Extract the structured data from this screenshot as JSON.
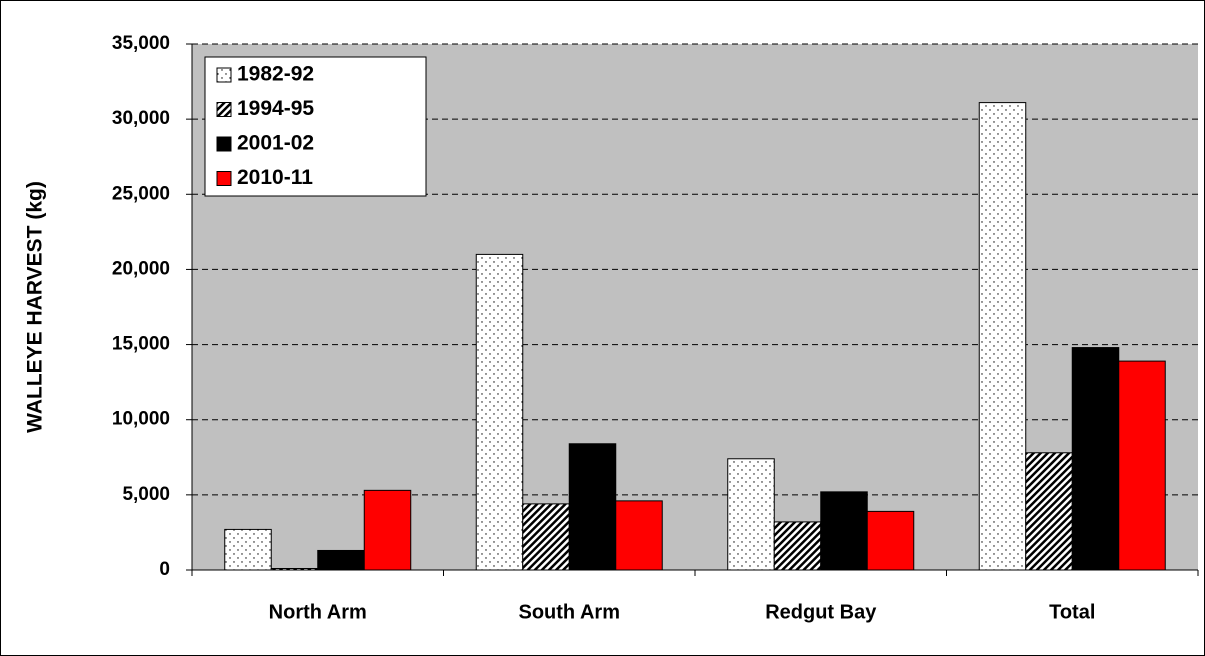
{
  "chart_data": {
    "type": "bar",
    "y_label": "WALLEYE HARVEST (kg)",
    "categories": [
      "North Arm",
      "South Arm",
      "Redgut Bay",
      "Total"
    ],
    "series": [
      {
        "name": "1982-92",
        "color": "#ffffff",
        "pattern": "dots",
        "values": [
          2700,
          21000,
          7400,
          31100
        ]
      },
      {
        "name": "1994-95",
        "color": "#ffffff",
        "pattern": "hatch",
        "values": [
          100,
          4400,
          3200,
          7800
        ]
      },
      {
        "name": "2001-02",
        "color": "#000000",
        "pattern": "solid",
        "values": [
          1300,
          8400,
          5200,
          14800
        ]
      },
      {
        "name": "2010-11",
        "color": "#ff0000",
        "pattern": "solid",
        "values": [
          5300,
          4600,
          3900,
          13900
        ]
      }
    ],
    "ylim": [
      0,
      35000
    ],
    "yticks": [
      0,
      {
        "value": 5000,
        "label": "5,000"
      },
      {
        "value": 10000,
        "label": "10,000"
      },
      {
        "value": 15000,
        "label": "15,000"
      },
      {
        "value": 20000,
        "label": "20,000"
      },
      {
        "value": 25000,
        "label": "25,000"
      },
      {
        "value": 30000,
        "label": "30,000"
      },
      {
        "value": 35000,
        "label": "35,000"
      }
    ],
    "grid": true,
    "legend": "top-left",
    "plot_background": "#c0c0c0"
  }
}
